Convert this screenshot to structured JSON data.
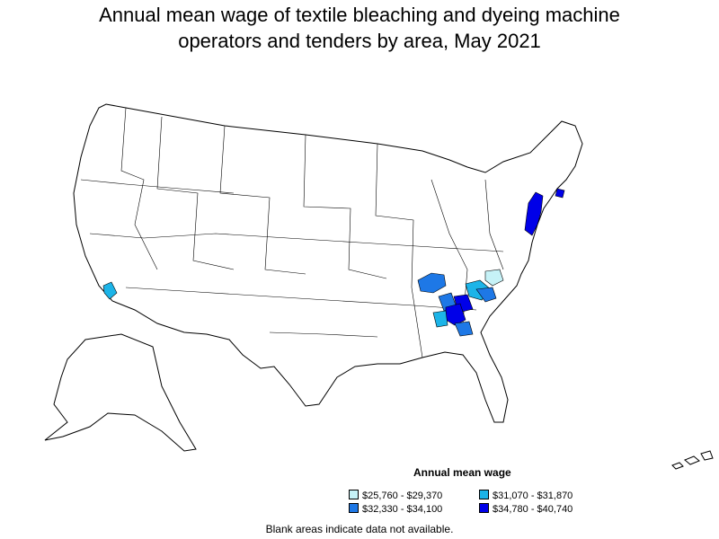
{
  "title_line1": "Annual mean wage of textile bleaching and dyeing machine",
  "title_line2": "operators and tenders by area, May 2021",
  "legend": {
    "title": "Annual mean wage",
    "items": [
      {
        "label": "$25,760 - $29,370",
        "color": "#c6f2f7"
      },
      {
        "label": "$31,070 - $31,870",
        "color": "#1cb4e8"
      },
      {
        "label": "$32,330 - $34,100",
        "color": "#1e78e6"
      },
      {
        "label": "$34,780 - $40,740",
        "color": "#0000e8"
      }
    ]
  },
  "note": "Blank areas indicate data not available.",
  "colors": {
    "outline": "#000000",
    "background": "#ffffff"
  }
}
